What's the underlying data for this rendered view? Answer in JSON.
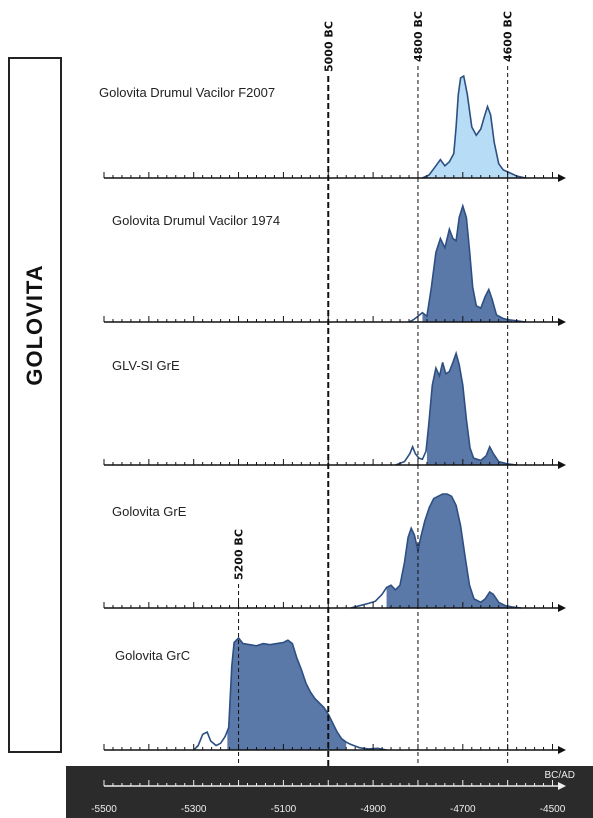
{
  "side_label": "GOLOVITA",
  "chart_data": {
    "type": "area",
    "xlabel": "BC/AD",
    "xlim": [
      -5500,
      -4490
    ],
    "x_ticks": [
      -5500,
      -5300,
      -5100,
      -4900,
      -4700,
      -4500
    ],
    "x_tick_labels": [
      "-5500",
      "-5300",
      "-5100",
      "-4900",
      "-4700",
      "-4500"
    ],
    "reference_lines": [
      {
        "x": -5000,
        "label": "5000 BC",
        "style": "bold-dashed"
      },
      {
        "x": -4800,
        "label": "4800 BC",
        "style": "dashed"
      },
      {
        "x": -4600,
        "label": "4600 BC",
        "style": "dashed"
      },
      {
        "x": -5200,
        "label": "5200 BC",
        "style": "dashed"
      }
    ],
    "series": [
      {
        "name": "Golovita Drumul Vacilor F2007",
        "fill": "#b7dcf5",
        "stroke": "#2d4f82",
        "range": [
          -4790,
          -4580
        ],
        "points": [
          [
            -4790,
            0
          ],
          [
            -4775,
            0.03
          ],
          [
            -4760,
            0.12
          ],
          [
            -4750,
            0.18
          ],
          [
            -4740,
            0.12
          ],
          [
            -4730,
            0.16
          ],
          [
            -4720,
            0.24
          ],
          [
            -4715,
            0.5
          ],
          [
            -4710,
            0.82
          ],
          [
            -4705,
            0.98
          ],
          [
            -4698,
            1.0
          ],
          [
            -4690,
            0.82
          ],
          [
            -4680,
            0.5
          ],
          [
            -4670,
            0.42
          ],
          [
            -4660,
            0.48
          ],
          [
            -4652,
            0.6
          ],
          [
            -4645,
            0.7
          ],
          [
            -4638,
            0.62
          ],
          [
            -4630,
            0.35
          ],
          [
            -4620,
            0.14
          ],
          [
            -4610,
            0.08
          ],
          [
            -4600,
            0.06
          ],
          [
            -4590,
            0.04
          ],
          [
            -4580,
            0.02
          ],
          [
            -4570,
            0.01
          ],
          [
            -4560,
            0
          ]
        ]
      },
      {
        "name": "Golovita Drumul Vacilor 1974",
        "fill": "#5b79a8",
        "stroke": "#2d4f82",
        "range": [
          -4790,
          -4590
        ],
        "points": [
          [
            -4820,
            0
          ],
          [
            -4810,
            0.02
          ],
          [
            -4800,
            0.05
          ],
          [
            -4790,
            0.08
          ],
          [
            -4780,
            0.05
          ],
          [
            -4770,
            0.3
          ],
          [
            -4760,
            0.6
          ],
          [
            -4750,
            0.72
          ],
          [
            -4740,
            0.64
          ],
          [
            -4730,
            0.8
          ],
          [
            -4722,
            0.72
          ],
          [
            -4715,
            0.7
          ],
          [
            -4708,
            0.9
          ],
          [
            -4700,
            1.0
          ],
          [
            -4692,
            0.9
          ],
          [
            -4685,
            0.62
          ],
          [
            -4678,
            0.3
          ],
          [
            -4670,
            0.14
          ],
          [
            -4660,
            0.12
          ],
          [
            -4650,
            0.22
          ],
          [
            -4642,
            0.28
          ],
          [
            -4635,
            0.2
          ],
          [
            -4625,
            0.06
          ],
          [
            -4610,
            0.03
          ],
          [
            -4600,
            0.02
          ],
          [
            -4580,
            0.01
          ],
          [
            -4560,
            0
          ]
        ]
      },
      {
        "name": "GLV-SI GrE",
        "fill": "#5b79a8",
        "stroke": "#2d4f82",
        "range": [
          -4780,
          -4600
        ],
        "points": [
          [
            -4850,
            0
          ],
          [
            -4830,
            0.03
          ],
          [
            -4818,
            0.1
          ],
          [
            -4812,
            0.16
          ],
          [
            -4806,
            0.1
          ],
          [
            -4798,
            0.06
          ],
          [
            -4790,
            0.05
          ],
          [
            -4782,
            0.12
          ],
          [
            -4776,
            0.35
          ],
          [
            -4768,
            0.7
          ],
          [
            -4760,
            0.85
          ],
          [
            -4752,
            0.78
          ],
          [
            -4745,
            0.9
          ],
          [
            -4738,
            0.8
          ],
          [
            -4730,
            0.82
          ],
          [
            -4722,
            0.9
          ],
          [
            -4715,
            0.98
          ],
          [
            -4708,
            0.88
          ],
          [
            -4700,
            0.7
          ],
          [
            -4692,
            0.4
          ],
          [
            -4684,
            0.15
          ],
          [
            -4676,
            0.06
          ],
          [
            -4660,
            0.04
          ],
          [
            -4648,
            0.08
          ],
          [
            -4640,
            0.16
          ],
          [
            -4632,
            0.1
          ],
          [
            -4620,
            0.03
          ],
          [
            -4600,
            0.01
          ],
          [
            -4580,
            0
          ]
        ]
      },
      {
        "name": "Golovita GrE",
        "fill": "#5b79a8",
        "stroke": "#2d4f82",
        "range": [
          -4870,
          -4600
        ],
        "points": [
          [
            -4950,
            0
          ],
          [
            -4930,
            0.02
          ],
          [
            -4910,
            0.04
          ],
          [
            -4895,
            0.06
          ],
          [
            -4880,
            0.12
          ],
          [
            -4870,
            0.18
          ],
          [
            -4860,
            0.2
          ],
          [
            -4850,
            0.16
          ],
          [
            -4840,
            0.2
          ],
          [
            -4830,
            0.4
          ],
          [
            -4822,
            0.62
          ],
          [
            -4815,
            0.7
          ],
          [
            -4808,
            0.64
          ],
          [
            -4800,
            0.5
          ],
          [
            -4795,
            0.6
          ],
          [
            -4785,
            0.76
          ],
          [
            -4775,
            0.88
          ],
          [
            -4765,
            0.96
          ],
          [
            -4755,
            0.98
          ],
          [
            -4745,
            1.0
          ],
          [
            -4735,
            1.0
          ],
          [
            -4725,
            0.98
          ],
          [
            -4715,
            0.9
          ],
          [
            -4705,
            0.72
          ],
          [
            -4695,
            0.45
          ],
          [
            -4685,
            0.2
          ],
          [
            -4675,
            0.08
          ],
          [
            -4660,
            0.05
          ],
          [
            -4650,
            0.08
          ],
          [
            -4640,
            0.14
          ],
          [
            -4632,
            0.12
          ],
          [
            -4620,
            0.05
          ],
          [
            -4605,
            0.02
          ],
          [
            -4590,
            0.01
          ],
          [
            -4570,
            0
          ]
        ]
      },
      {
        "name": "Golovita GrC",
        "fill": "#5b79a8",
        "stroke": "#2d4f82",
        "range": [
          -5225,
          -4960
        ],
        "points": [
          [
            -5300,
            0
          ],
          [
            -5290,
            0.04
          ],
          [
            -5280,
            0.14
          ],
          [
            -5270,
            0.16
          ],
          [
            -5262,
            0.08
          ],
          [
            -5250,
            0.04
          ],
          [
            -5240,
            0.06
          ],
          [
            -5230,
            0.12
          ],
          [
            -5222,
            0.2
          ],
          [
            -5215,
            0.75
          ],
          [
            -5210,
            0.96
          ],
          [
            -5200,
            1.0
          ],
          [
            -5190,
            0.95
          ],
          [
            -5175,
            0.94
          ],
          [
            -5160,
            0.93
          ],
          [
            -5145,
            0.95
          ],
          [
            -5130,
            0.94
          ],
          [
            -5115,
            0.95
          ],
          [
            -5100,
            0.96
          ],
          [
            -5090,
            0.98
          ],
          [
            -5080,
            0.95
          ],
          [
            -5070,
            0.82
          ],
          [
            -5060,
            0.72
          ],
          [
            -5050,
            0.6
          ],
          [
            -5040,
            0.52
          ],
          [
            -5030,
            0.46
          ],
          [
            -5020,
            0.42
          ],
          [
            -5010,
            0.38
          ],
          [
            -5000,
            0.32
          ],
          [
            -4990,
            0.24
          ],
          [
            -4980,
            0.16
          ],
          [
            -4970,
            0.1
          ],
          [
            -4960,
            0.07
          ],
          [
            -4950,
            0.05
          ],
          [
            -4930,
            0.02
          ],
          [
            -4910,
            0.01
          ],
          [
            -4890,
            0.015
          ],
          [
            -4870,
            0
          ]
        ]
      }
    ]
  }
}
